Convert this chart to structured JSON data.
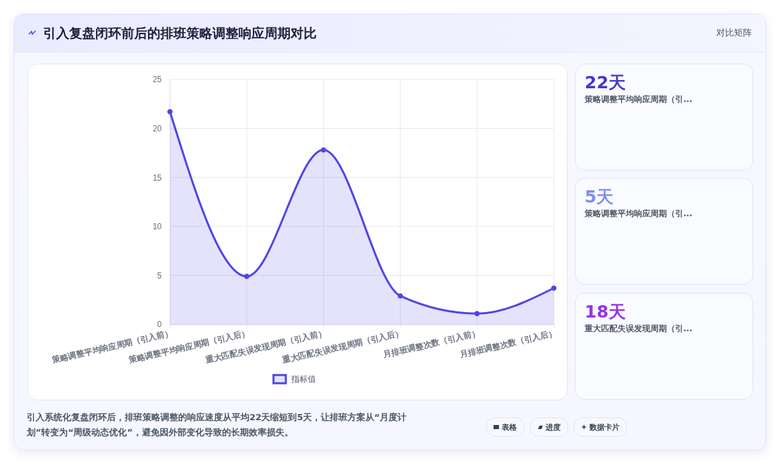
{
  "chart_data": [
    {
      "type": "area",
      "title": "引入复盘闭环前后的排班策略调整响应周期对比",
      "categories": [
        "策略调整平均响应周期（引入前）",
        "策略调整平均响应周期（引入后）",
        "重大匹配失误发现周期（引入前）",
        "重大匹配失误发现周期（引入后）",
        "月排班调整次数（引入前）",
        "月排班调整次数（引入后）"
      ],
      "series": [
        {
          "name": "指标值",
          "color": "#4f46e5",
          "values": [
            21.7,
            4.9,
            17.8,
            2.9,
            1.1,
            3.7
          ]
        }
      ],
      "ylim": [
        0,
        25
      ],
      "yticks": [
        0,
        5,
        10,
        15,
        20,
        25
      ],
      "grid": true,
      "legend": "bottom",
      "marker": "circle",
      "annotations": [
        "引入系统化复盘闭环后，排班策略调整的响应速度从平均22天缩短到5天，让排班方案从“月度计划”转变为“周级动态优化”，避免因外部变化导致的长期效率损失。",
        "对比矩阵",
        "表格",
        "进度",
        "数据卡片"
      ]
    },
    {
      "type": "other",
      "colors": [
        "#4338ca",
        "#818cf8",
        "#9333ea"
      ],
      "annotations": [
        "22天",
        "策略调整平均响应周期（引...",
        "5天",
        "策略调整平均响应周期（引...",
        "18天",
        "重大匹配失误发现周期（引..."
      ]
    }
  ]
}
